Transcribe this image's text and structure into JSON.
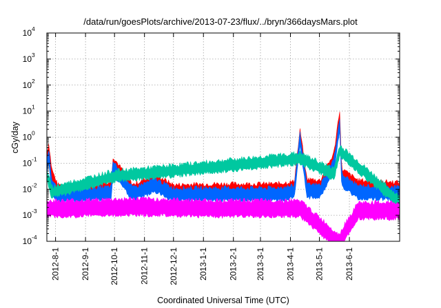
{
  "chart_data": {
    "type": "area",
    "title": "/data/run/goesPlots/archive/2013-07-23/flux/../bryn/366daysMars.plot",
    "xlabel": "Coordinated Universal Time (UTC)",
    "ylabel": "cGy/day",
    "yscale": "log",
    "ylim": [
      0.0001,
      10000
    ],
    "y_ticks": [
      {
        "base": "10",
        "exp": "-4"
      },
      {
        "base": "10",
        "exp": "-3"
      },
      {
        "base": "10",
        "exp": "-2"
      },
      {
        "base": "10",
        "exp": "-1"
      },
      {
        "base": "10",
        "exp": "0"
      },
      {
        "base": "10",
        "exp": "1"
      },
      {
        "base": "10",
        "exp": "2"
      },
      {
        "base": "10",
        "exp": "3"
      },
      {
        "base": "10",
        "exp": "4"
      }
    ],
    "xlim": [
      "2012-07-23",
      "2013-07-23"
    ],
    "x_ticks": [
      "2012-8-1",
      "2012-9-1",
      "2012-10-1",
      "2012-11-1",
      "2012-12-1",
      "2013-1-1",
      "2013-2-1",
      "2013-3-1",
      "2013-4-1",
      "2013-5-1",
      "2013-6-1"
    ],
    "grid": true,
    "series": [
      {
        "color": "#ff0000",
        "x": [
          "2012-07-23",
          "2012-07-25",
          "2012-07-28",
          "2012-08-03",
          "2012-08-15",
          "2012-09-01",
          "2012-09-28",
          "2012-09-29",
          "2012-10-20",
          "2012-11-12",
          "2012-12-01",
          "2013-01-10",
          "2013-02-10",
          "2013-03-16",
          "2013-04-05",
          "2013-04-11",
          "2013-04-18",
          "2013-05-02",
          "2013-05-16",
          "2013-05-22",
          "2013-05-24",
          "2013-06-10",
          "2013-07-23"
        ],
        "values": [
          0.2,
          0.5,
          0.05,
          0.012,
          0.012,
          0.013,
          0.015,
          0.15,
          0.012,
          0.03,
          0.012,
          0.013,
          0.013,
          0.013,
          0.016,
          1.6,
          0.02,
          0.018,
          0.2,
          9.5,
          0.05,
          0.018,
          0.015
        ]
      },
      {
        "color": "#0066ff",
        "x": [
          "2012-07-23",
          "2012-07-25",
          "2012-07-28",
          "2012-08-03",
          "2012-08-15",
          "2012-09-01",
          "2012-09-28",
          "2012-09-29",
          "2012-10-20",
          "2012-11-12",
          "2012-12-01",
          "2013-01-10",
          "2013-02-10",
          "2013-03-16",
          "2013-04-05",
          "2013-04-11",
          "2013-04-18",
          "2013-05-02",
          "2013-05-16",
          "2013-05-22",
          "2013-05-24",
          "2013-06-10",
          "2013-07-23"
        ],
        "values": [
          0.1,
          0.3,
          0.02,
          0.008,
          0.008,
          0.009,
          0.01,
          0.1,
          0.009,
          0.02,
          0.009,
          0.009,
          0.009,
          0.009,
          0.011,
          1.2,
          0.012,
          0.012,
          0.12,
          4.5,
          0.03,
          0.011,
          0.01
        ]
      },
      {
        "color": "#00c8a0",
        "x": [
          "2012-07-23",
          "2012-07-28",
          "2012-09-29",
          "2013-04-11",
          "2013-05-16",
          "2013-05-22",
          "2013-07-23"
        ],
        "values": [
          0.05,
          0.01,
          0.04,
          0.2,
          0.05,
          0.4,
          0.004
        ]
      },
      {
        "color": "#ff00ff",
        "x": [
          "2012-07-23",
          "2012-08-15",
          "2012-10-20",
          "2013-01-10",
          "2013-04-11",
          "2013-05-21",
          "2013-06-10",
          "2013-07-23"
        ],
        "values": [
          0.003,
          0.003,
          0.0035,
          0.003,
          0.003,
          0.00015,
          0.0025,
          0.0025
        ]
      }
    ]
  }
}
